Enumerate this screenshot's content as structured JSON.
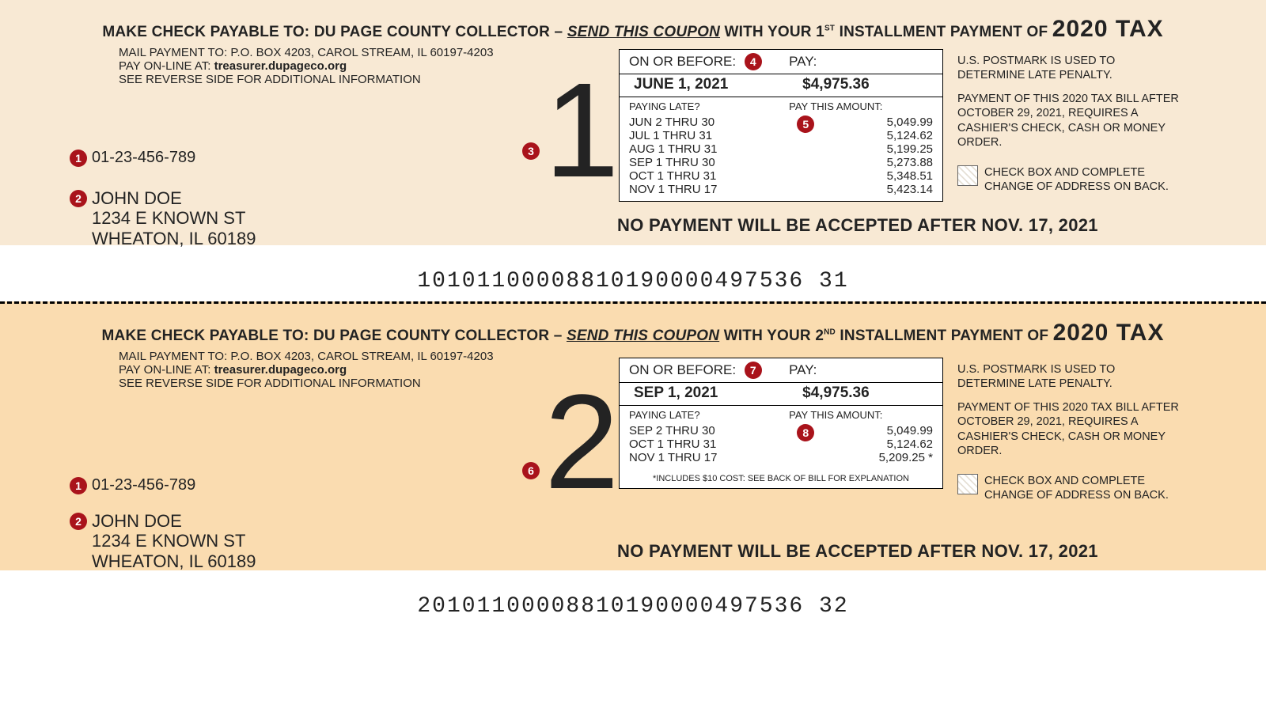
{
  "common": {
    "payee_line_prefix": "MAKE CHECK PAYABLE TO:  DU PAGE COUNTY COLLECTOR – ",
    "send_coupon": "SEND THIS COUPON",
    "mail_to": "MAIL PAYMENT TO: P.O. BOX 4203, CAROL STREAM, IL 60197-4203",
    "pay_online_prefix": "PAY ON-LINE AT: ",
    "pay_online_url": "treasurer.dupageco.org",
    "see_reverse": "SEE REVERSE SIDE FOR ADDITIONAL INFORMATION",
    "tax_year": "2020 TAX",
    "parcel": "01-23-456-789",
    "name": "JOHN DOE",
    "street": "1234 E KNOWN ST",
    "city": "WHEATON, IL 60189",
    "before_label": "ON OR BEFORE:",
    "pay_label": "PAY:",
    "late_label": "PAYING LATE?",
    "pay_this": "PAY THIS AMOUNT:",
    "postmark": "U.S. POSTMARK IS USED TO DETERMINE LATE PENALTY.",
    "after_note": "PAYMENT OF THIS 2020 TAX BILL AFTER OCTOBER 29, 2021, REQUIRES A CASHIER'S CHECK, CASH OR MONEY ORDER.",
    "checkbox_note": "CHECK BOX AND COMPLETE CHANGE OF ADDRESS ON BACK.",
    "no_pay_after": "NO PAYMENT WILL BE ACCEPTED AFTER NOV. 17, 2021"
  },
  "coupon1": {
    "installment_html": " WITH YOUR 1<sup>ST</sup> INSTALLMENT PAYMENT OF  ",
    "big": "1",
    "due_date": "JUNE 1, 2021",
    "pay_amount": "$4,975.36",
    "late_ranges": [
      "JUN 2 THRU 30",
      "JUL 1 THRU 31",
      "AUG 1 THRU 31",
      "SEP 1 THRU 30",
      "OCT 1 THRU 31",
      "NOV 1 THRU 17"
    ],
    "late_amounts": [
      "5,049.99",
      "5,124.62",
      "5,199.25",
      "5,273.88",
      "5,348.51",
      "5,423.14"
    ],
    "badges": {
      "parcel": "1",
      "addr": "2",
      "big": "3",
      "before": "4",
      "late": "5"
    },
    "barcode": "10101100008810190000497536̶31",
    "barcode_plain": "10101100008810190000497536 31"
  },
  "coupon2": {
    "installment_html": " WITH YOUR 2<sup>ND</sup> INSTALLMENT PAYMENT OF  ",
    "big": "2",
    "due_date": "SEP 1, 2021",
    "pay_amount": "$4,975.36",
    "late_ranges": [
      "SEP 2 THRU 30",
      "OCT 1 THRU 31",
      "NOV 1 THRU 17"
    ],
    "late_amounts": [
      "5,049.99",
      "5,124.62",
      "5,209.25 *"
    ],
    "footnote": "*INCLUDES $10 COST: SEE BACK OF BILL FOR EXPLANATION",
    "badges": {
      "parcel": "1",
      "addr": "2",
      "big": "6",
      "before": "7",
      "late": "8"
    },
    "barcode_plain": "20101100008810190000497536 32"
  },
  "style": {
    "bg1": "#f8e9d4",
    "bg2": "#fadcb0",
    "badge": "#a9131b",
    "text": "#232323"
  }
}
